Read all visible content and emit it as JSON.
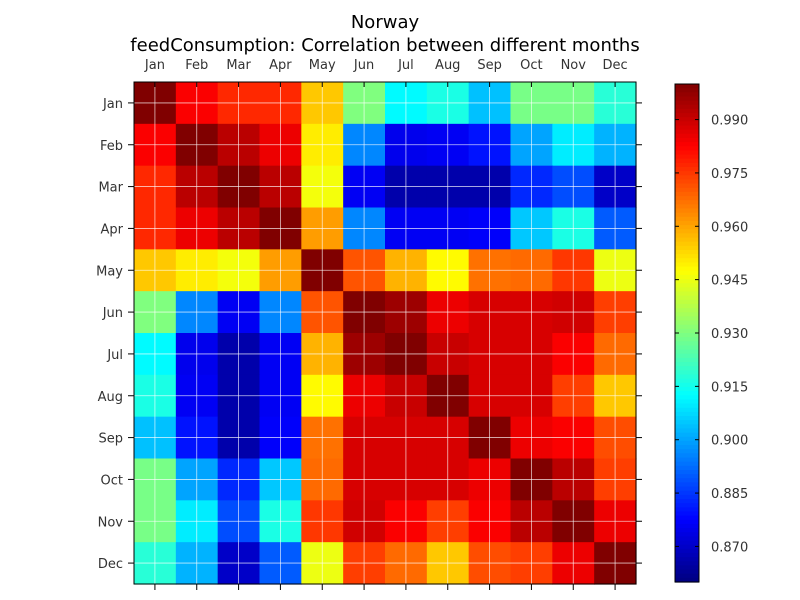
{
  "chart_data": {
    "type": "heatmap",
    "title_line1": "Norway",
    "title_line2": "feedConsumption: Correlation between different months",
    "x_labels": [
      "Jan",
      "Feb",
      "Mar",
      "Apr",
      "May",
      "Jun",
      "Jul",
      "Aug",
      "Sep",
      "Oct",
      "Nov",
      "Dec"
    ],
    "y_labels": [
      "Jan",
      "Feb",
      "Mar",
      "Apr",
      "May",
      "Jun",
      "Jul",
      "Aug",
      "Sep",
      "Oct",
      "Nov",
      "Dec"
    ],
    "vmin": 0.86,
    "vmax": 1.0,
    "colorbar_ticks": [
      "0.870",
      "0.885",
      "0.900",
      "0.915",
      "0.930",
      "0.945",
      "0.960",
      "0.975",
      "0.990"
    ],
    "colormap": "jet",
    "grid": true,
    "values": [
      [
        1.0,
        0.983,
        0.977,
        0.977,
        0.955,
        0.93,
        0.912,
        0.916,
        0.904,
        0.929,
        0.929,
        0.918
      ],
      [
        0.983,
        1.0,
        0.992,
        0.985,
        0.95,
        0.896,
        0.875,
        0.876,
        0.88,
        0.9,
        0.91,
        0.902
      ],
      [
        0.977,
        0.992,
        1.0,
        0.992,
        0.946,
        0.876,
        0.866,
        0.866,
        0.866,
        0.883,
        0.888,
        0.87
      ],
      [
        0.977,
        0.985,
        0.992,
        1.0,
        0.961,
        0.896,
        0.876,
        0.876,
        0.877,
        0.905,
        0.916,
        0.89
      ],
      [
        0.955,
        0.95,
        0.946,
        0.961,
        1.0,
        0.971,
        0.958,
        0.948,
        0.967,
        0.968,
        0.975,
        0.945
      ],
      [
        0.93,
        0.896,
        0.876,
        0.896,
        0.971,
        1.0,
        0.996,
        0.985,
        0.988,
        0.988,
        0.989,
        0.974
      ],
      [
        0.912,
        0.875,
        0.866,
        0.876,
        0.958,
        0.996,
        1.0,
        0.99,
        0.988,
        0.988,
        0.983,
        0.968
      ],
      [
        0.916,
        0.876,
        0.866,
        0.876,
        0.948,
        0.985,
        0.99,
        1.0,
        0.988,
        0.988,
        0.974,
        0.955
      ],
      [
        0.904,
        0.88,
        0.866,
        0.877,
        0.967,
        0.988,
        0.988,
        0.988,
        1.0,
        0.985,
        0.983,
        0.972
      ],
      [
        0.929,
        0.9,
        0.883,
        0.905,
        0.968,
        0.988,
        0.988,
        0.988,
        0.985,
        1.0,
        0.992,
        0.974
      ],
      [
        0.929,
        0.91,
        0.888,
        0.916,
        0.975,
        0.989,
        0.983,
        0.974,
        0.983,
        0.992,
        1.0,
        0.985
      ],
      [
        0.918,
        0.902,
        0.87,
        0.89,
        0.945,
        0.974,
        0.968,
        0.955,
        0.972,
        0.974,
        0.985,
        1.0
      ]
    ]
  }
}
